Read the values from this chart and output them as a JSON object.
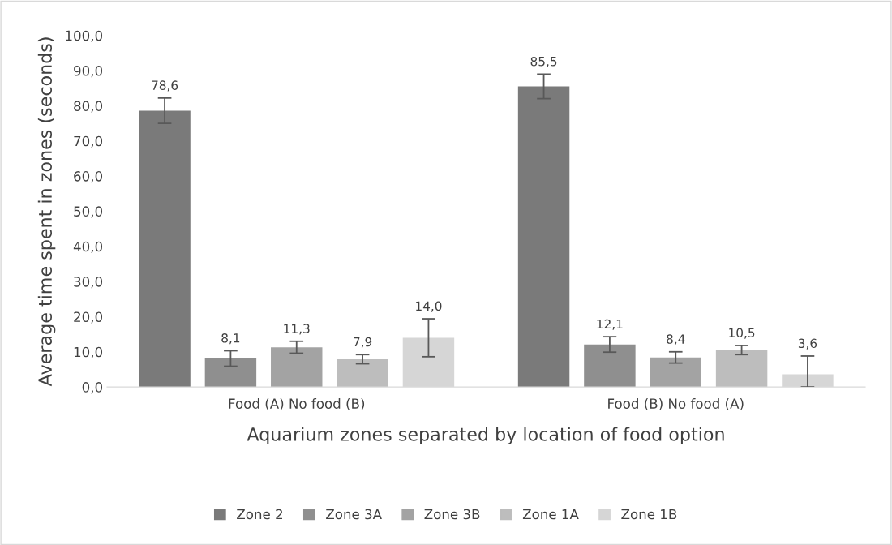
{
  "chart_data": {
    "type": "bar",
    "xlabel": "Aquarium zones separated by location of food option",
    "ylabel": "Average time spent in zones (seconds)",
    "categories": [
      "Food (A) No food (B)",
      "Food (B) No food (A)"
    ],
    "series": [
      {
        "name": "Zone 2",
        "color": "#7a7a7a",
        "values": [
          78.6,
          85.5
        ],
        "errors": [
          3.6,
          3.5
        ],
        "value_labels": [
          "78,6",
          "85,5"
        ]
      },
      {
        "name": "Zone 3A",
        "color": "#8f8f8f",
        "values": [
          8.1,
          12.1
        ],
        "errors": [
          2.2,
          2.2
        ],
        "value_labels": [
          "8,1",
          "12,1"
        ]
      },
      {
        "name": "Zone 3B",
        "color": "#a3a3a3",
        "values": [
          11.3,
          8.4
        ],
        "errors": [
          1.7,
          1.6
        ],
        "value_labels": [
          "11,3",
          "8,4"
        ]
      },
      {
        "name": "Zone 1A",
        "color": "#bdbdbd",
        "values": [
          7.9,
          10.5
        ],
        "errors": [
          1.3,
          1.3
        ],
        "value_labels": [
          "7,9",
          "10,5"
        ]
      },
      {
        "name": "Zone 1B",
        "color": "#d6d6d6",
        "values": [
          14.0,
          3.6
        ],
        "errors": [
          5.4,
          [
            0,
            8.8
          ]
        ],
        "value_labels": [
          "14,0",
          "3,6"
        ]
      }
    ],
    "ylim": [
      0,
      100
    ],
    "yticks": [
      {
        "value": 0,
        "label": "0,0"
      },
      {
        "value": 10,
        "label": "10,0"
      },
      {
        "value": 20,
        "label": "20,0"
      },
      {
        "value": 30,
        "label": "30,0"
      },
      {
        "value": 40,
        "label": "40,0"
      },
      {
        "value": 50,
        "label": "50,0"
      },
      {
        "value": 60,
        "label": "60,0"
      },
      {
        "value": 70,
        "label": "70,0"
      },
      {
        "value": 80,
        "label": "80,0"
      },
      {
        "value": 90,
        "label": "90,0"
      },
      {
        "value": 100,
        "label": "100,0"
      }
    ],
    "grid": false,
    "legend": "bottom"
  }
}
